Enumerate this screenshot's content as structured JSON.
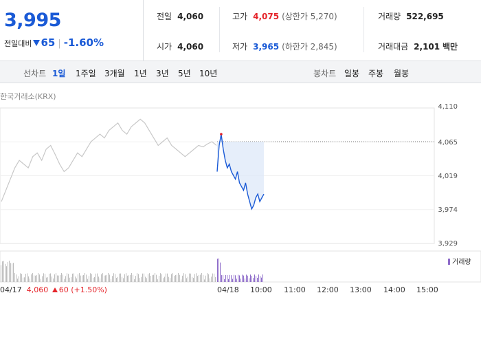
{
  "quote": {
    "price": "3,995",
    "change_label": "전일대비",
    "change_value": "65",
    "change_pct": "-1.60%"
  },
  "stats": {
    "prev_close": {
      "label": "전일",
      "value": "4,060"
    },
    "open": {
      "label": "시가",
      "value": "4,060"
    },
    "high": {
      "label": "고가",
      "value": "4,075",
      "limit": "(상한가 5,270)"
    },
    "low": {
      "label": "저가",
      "value": "3,965",
      "limit": "(하한가 2,845)"
    },
    "volume": {
      "label": "거래량",
      "value": "522,695"
    },
    "amount": {
      "label": "거래대금",
      "value": "2,101",
      "unit": "백만"
    }
  },
  "line_tabs": {
    "label": "선차트",
    "items": [
      "1일",
      "1주일",
      "3개월",
      "1년",
      "3년",
      "5년",
      "10년"
    ],
    "active": "1일"
  },
  "candle_tabs": {
    "label": "봉차트",
    "items": [
      "일봉",
      "주봉",
      "월봉"
    ]
  },
  "source": "한국거래소(KRX)",
  "prev_day_info": {
    "date": "04/17",
    "price": "4,060",
    "change": "60",
    "pct": "(+1.50%)"
  },
  "colors": {
    "blue": "#1a5ad6",
    "red": "#e5252b",
    "gray_line": "#c8c8c8",
    "volume_today": "#8d6bc9",
    "volume_prev": "#bdbdbd"
  },
  "chart_data": {
    "type": "line",
    "ylim": [
      3929,
      4110
    ],
    "yticks": [
      "4,110",
      "4,065",
      "4,019",
      "3,974",
      "3,929"
    ],
    "xticks": [
      "04/18",
      "10:00",
      "11:00",
      "12:00",
      "13:00",
      "14:00",
      "15:00"
    ],
    "reference_line": 4065,
    "volume_legend": "거래량",
    "series": [
      {
        "values_prev_day": [
          3985,
          4000,
          4015,
          4030,
          4040,
          4035,
          4030,
          4045,
          4050,
          4040,
          4055,
          4060,
          4048,
          4035,
          4025,
          4030,
          4040,
          4050,
          4045,
          4055,
          4065,
          4070,
          4075,
          4070,
          4080,
          4085,
          4090,
          4080,
          4075,
          4085,
          4090,
          4095,
          4090,
          4080,
          4070,
          4060,
          4065,
          4070,
          4060,
          4055,
          4050,
          4045,
          4050,
          4055,
          4060,
          4058,
          4062,
          4065,
          4060
        ],
        "values_today": [
          4025,
          4060,
          4075,
          4055,
          4040,
          4030,
          4035,
          4025,
          4020,
          4015,
          4025,
          4010,
          4005,
          4000,
          4010,
          3995,
          3985,
          3975,
          3980,
          3990,
          3995,
          3985,
          3990,
          3995
        ]
      }
    ]
  }
}
